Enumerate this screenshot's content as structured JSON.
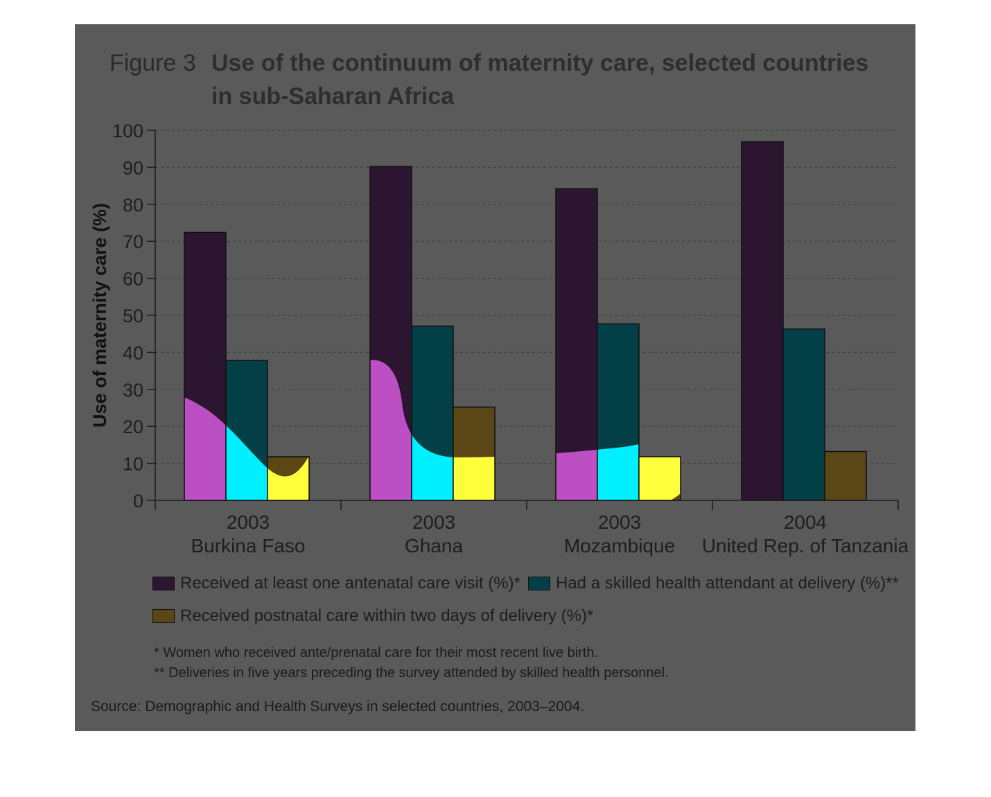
{
  "figure_label": "Figure 3",
  "title_line1": "Use of the continuum of maternity care, selected countries",
  "title_line2": "in sub-Saharan Africa",
  "chart_data": {
    "type": "bar",
    "ylabel": "Use of maternity care (%)",
    "ylim": [
      0,
      100
    ],
    "yticks": [
      0,
      10,
      20,
      30,
      40,
      50,
      60,
      70,
      80,
      90,
      100
    ],
    "grid": "horizontal dashed",
    "categories": [
      {
        "year": "2003",
        "country": "Burkina Faso"
      },
      {
        "year": "2003",
        "country": "Ghana"
      },
      {
        "year": "2003",
        "country": "Mozambique"
      },
      {
        "year": "2004",
        "country": "United Rep. of Tanzania"
      }
    ],
    "series": [
      {
        "name": "Received at least one antenatal care visit (%)*",
        "color": "#2c1530",
        "highlight_color": "#bc4fc3",
        "values": [
          72.4,
          90.2,
          84.2,
          96.9
        ]
      },
      {
        "name": "Had a skilled health attendant at delivery (%)**",
        "color": "#033f46",
        "highlight_color": "#00f0ff",
        "values": [
          37.8,
          47.1,
          47.7,
          46.3
        ]
      },
      {
        "name": "Received postnatal care within two days of delivery (%)*",
        "color": "#5b4615",
        "highlight_color": "#ffff3c",
        "values": [
          11.8,
          25.2,
          11.8,
          13.2
        ]
      }
    ],
    "legend_position": "bottom"
  },
  "notes": [
    "* Women who received ante/prenatal care for their most recent live birth.",
    "** Deliveries in five years preceding the survey attended by skilled health personnel."
  ],
  "source": "Source: Demographic and Health Surveys in selected countries, 2003–2004."
}
